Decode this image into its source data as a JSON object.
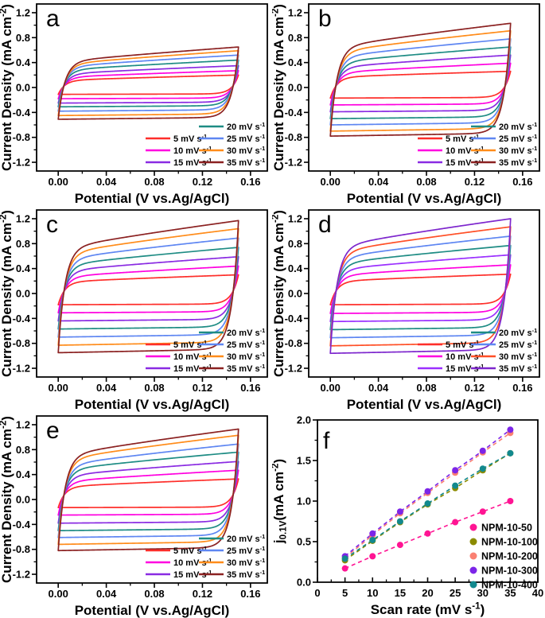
{
  "figure": {
    "background": "#ffffff",
    "axis_color": "#000000",
    "text_color": "#000000"
  },
  "chart_data": [
    {
      "id": "a",
      "type": "cv",
      "panel_label": "a",
      "xlabel": "Potential (V vs.Ag/AgCl)",
      "ylabel": "Current Density (mA cm^-2^)",
      "xlim": [
        -0.018,
        0.174
      ],
      "ylim": [
        -1.34,
        1.34
      ],
      "vmax": 0.15,
      "xticks": [
        0,
        0.04,
        0.08,
        0.12,
        0.16
      ],
      "xtick_labels": [
        "0.00",
        "0.04",
        "0.08",
        "0.12",
        "0.16"
      ],
      "yticks": [
        -1.2,
        -0.8,
        -0.4,
        0.0,
        0.4,
        0.8,
        1.2
      ],
      "ytick_labels": [
        "-1.2",
        "-0.8",
        "-0.4",
        "0.0",
        "0.4",
        "0.8",
        "1.2"
      ],
      "grid": false,
      "legend_position": "bottom-right",
      "series": [
        {
          "label": "5  mV s^-1^",
          "color": "#FE2E2A",
          "top_right": 0.2,
          "top_left": 0.11,
          "bottom": -0.11
        },
        {
          "label": "10 mV s^-1^",
          "color": "#FF00E0",
          "top_right": 0.27,
          "top_left": 0.16,
          "bottom": -0.18
        },
        {
          "label": "15 mV s^-1^",
          "color": "#8A2BE2",
          "top_right": 0.35,
          "top_left": 0.21,
          "bottom": -0.25
        },
        {
          "label": "20 mV s^-1^",
          "color": "#1E8C84",
          "top_right": 0.44,
          "top_left": 0.27,
          "bottom": -0.31
        },
        {
          "label": "25 mV s^-1^",
          "color": "#5E86F2",
          "top_right": 0.52,
          "top_left": 0.32,
          "bottom": -0.38
        },
        {
          "label": "30 mV s^-1^",
          "color": "#FF8C1A",
          "top_right": 0.59,
          "top_left": 0.36,
          "bottom": -0.45
        },
        {
          "label": "35 mV s^-1^",
          "color": "#8B2121",
          "top_right": 0.65,
          "top_left": 0.4,
          "bottom": -0.51
        }
      ]
    },
    {
      "id": "b",
      "type": "cv",
      "panel_label": "b",
      "xlabel": "Potential (V vs.Ag/AgCl)",
      "ylabel": "Current Density (mA cm^-2^)",
      "xlim": [
        -0.018,
        0.174
      ],
      "ylim": [
        -1.34,
        1.34
      ],
      "vmax": 0.15,
      "xticks": [
        0,
        0.04,
        0.08,
        0.12,
        0.16
      ],
      "xtick_labels": [
        "0.00",
        "0.04",
        "0.08",
        "0.12",
        "0.16"
      ],
      "yticks": [
        -1.2,
        -0.8,
        -0.4,
        0.0,
        0.4,
        0.8,
        1.2
      ],
      "ytick_labels": [
        "-1.2",
        "-0.8",
        "-0.4",
        "0.0",
        "0.4",
        "0.8",
        "1.2"
      ],
      "grid": false,
      "legend_position": "bottom-right",
      "series": [
        {
          "label": "5  mV s^-1^",
          "color": "#FE2E2A",
          "top_right": 0.26,
          "top_left": 0.16,
          "bottom": -0.17
        },
        {
          "label": "10 mV s^-1^",
          "color": "#FF00E0",
          "top_right": 0.39,
          "top_left": 0.23,
          "bottom": -0.28
        },
        {
          "label": "15 mV s^-1^",
          "color": "#8A2BE2",
          "top_right": 0.52,
          "top_left": 0.31,
          "bottom": -0.39
        },
        {
          "label": "20 mV s^-1^",
          "color": "#1E8C84",
          "top_right": 0.65,
          "top_left": 0.39,
          "bottom": -0.5
        },
        {
          "label": "25 mV s^-1^",
          "color": "#5E86F2",
          "top_right": 0.78,
          "top_left": 0.47,
          "bottom": -0.6
        },
        {
          "label": "30 mV s^-1^",
          "color": "#FF8C1A",
          "top_right": 0.91,
          "top_left": 0.55,
          "bottom": -0.7
        },
        {
          "label": "35 mV s^-1^",
          "color": "#8B2121",
          "top_right": 1.03,
          "top_left": 0.62,
          "bottom": -0.78
        }
      ]
    },
    {
      "id": "c",
      "type": "cv",
      "panel_label": "c",
      "xlabel": "Potential (V vs.Ag/AgCl)",
      "ylabel": "Current Density (mA cm^-2^)",
      "xlim": [
        -0.018,
        0.174
      ],
      "ylim": [
        -1.34,
        1.34
      ],
      "vmax": 0.15,
      "xticks": [
        0,
        0.04,
        0.08,
        0.12,
        0.16
      ],
      "xtick_labels": [
        "0.00",
        "0.04",
        "0.08",
        "0.12",
        "0.16"
      ],
      "yticks": [
        -1.2,
        -0.8,
        -0.4,
        0.0,
        0.4,
        0.8,
        1.2
      ],
      "ytick_labels": [
        "-1.2",
        "-0.8",
        "-0.4",
        "0.0",
        "0.4",
        "0.8",
        "1.2"
      ],
      "grid": false,
      "legend_position": "bottom-right",
      "series": [
        {
          "label": "5  mV s^-1^",
          "color": "#FE2E2A",
          "top_right": 0.3,
          "top_left": 0.18,
          "bottom": -0.18
        },
        {
          "label": "10 mV s^-1^",
          "color": "#FF00E0",
          "top_right": 0.44,
          "top_left": 0.26,
          "bottom": -0.31
        },
        {
          "label": "15 mV s^-1^",
          "color": "#8A2BE2",
          "top_right": 0.59,
          "top_left": 0.35,
          "bottom": -0.44
        },
        {
          "label": "20 mV s^-1^",
          "color": "#1E8C84",
          "top_right": 0.74,
          "top_left": 0.44,
          "bottom": -0.57
        },
        {
          "label": "25 mV s^-1^",
          "color": "#5E86F2",
          "top_right": 0.89,
          "top_left": 0.53,
          "bottom": -0.7
        },
        {
          "label": "30 mV s^-1^",
          "color": "#FF8C1A",
          "top_right": 1.04,
          "top_left": 0.62,
          "bottom": -0.83
        },
        {
          "label": "35 mV s^-1^",
          "color": "#8B2121",
          "top_right": 1.17,
          "top_left": 0.7,
          "bottom": -0.95
        }
      ]
    },
    {
      "id": "d",
      "type": "cv",
      "panel_label": "d",
      "xlabel": "Potential (V vs.Ag/AgCl)",
      "ylabel": "Current Density (mA cm^-2^)",
      "xlim": [
        -0.018,
        0.174
      ],
      "ylim": [
        -1.34,
        1.34
      ],
      "vmax": 0.15,
      "xticks": [
        0,
        0.04,
        0.08,
        0.12,
        0.16
      ],
      "xtick_labels": [
        "0.00",
        "0.04",
        "0.08",
        "0.12",
        "0.16"
      ],
      "yticks": [
        -1.2,
        -0.8,
        -0.4,
        0.0,
        0.4,
        0.8,
        1.2
      ],
      "ytick_labels": [
        "-1.2",
        "-0.8",
        "-0.4",
        "0.0",
        "0.4",
        "0.8",
        "1.2"
      ],
      "grid": false,
      "legend_position": "bottom-right",
      "series": [
        {
          "label": "5  mV s^-1^",
          "color": "#FE2E2A",
          "top_right": 0.31,
          "top_left": 0.19,
          "bottom": -0.18
        },
        {
          "label": "10 mV s^-1^",
          "color": "#FF00E0",
          "top_right": 0.46,
          "top_left": 0.28,
          "bottom": -0.32
        },
        {
          "label": "15 mV s^-1^",
          "color": "#9B30FF",
          "top_right": 0.62,
          "top_left": 0.37,
          "bottom": -0.45
        },
        {
          "label": "20 mV s^-1^",
          "color": "#1E8C84",
          "top_right": 0.77,
          "top_left": 0.46,
          "bottom": -0.58
        },
        {
          "label": "25 mV s^-1^",
          "color": "#5E86F2",
          "top_right": 0.92,
          "top_left": 0.55,
          "bottom": -0.71
        },
        {
          "label": "30 mV s^-1^",
          "color": "#FF4F26",
          "top_right": 1.07,
          "top_left": 0.64,
          "bottom": -0.84
        },
        {
          "label": "35 mV s^-1^",
          "color": "#7D26CD",
          "top_right": 1.2,
          "top_left": 0.72,
          "bottom": -0.96
        }
      ]
    },
    {
      "id": "e",
      "type": "cv",
      "panel_label": "e",
      "xlabel": "Potential (V vs.Ag/AgCl)",
      "ylabel": "Current Density (mA cm^-2^)",
      "xlim": [
        -0.018,
        0.174
      ],
      "ylim": [
        -1.34,
        1.34
      ],
      "vmax": 0.15,
      "xticks": [
        0,
        0.04,
        0.08,
        0.12,
        0.16
      ],
      "xtick_labels": [
        "0.00",
        "0.04",
        "0.08",
        "0.12",
        "0.16"
      ],
      "yticks": [
        -1.2,
        -0.8,
        -0.4,
        0.0,
        0.4,
        0.8,
        1.2
      ],
      "ytick_labels": [
        "-1.2",
        "-0.8",
        "-0.4",
        "0.0",
        "0.4",
        "0.8",
        "1.2"
      ],
      "grid": false,
      "legend_position": "bottom-right",
      "series": [
        {
          "label": "5  mV s^-1^",
          "color": "#FE2E2A",
          "top_right": 0.33,
          "top_left": 0.2,
          "bottom": -0.13
        },
        {
          "label": "10 mV s^-1^",
          "color": "#FF00E0",
          "top_right": 0.47,
          "top_left": 0.28,
          "bottom": -0.25
        },
        {
          "label": "15 mV s^-1^",
          "color": "#8A2BE2",
          "top_right": 0.61,
          "top_left": 0.37,
          "bottom": -0.38
        },
        {
          "label": "20 mV s^-1^",
          "color": "#1E8C84",
          "top_right": 0.76,
          "top_left": 0.46,
          "bottom": -0.5
        },
        {
          "label": "25 mV s^-1^",
          "color": "#5E86F2",
          "top_right": 0.89,
          "top_left": 0.53,
          "bottom": -0.61
        },
        {
          "label": "30 mV s^-1^",
          "color": "#FF8C1A",
          "top_right": 1.03,
          "top_left": 0.62,
          "bottom": -0.72
        },
        {
          "label": "35 mV s^-1^",
          "color": "#8B2121",
          "top_right": 1.13,
          "top_left": 0.68,
          "bottom": -0.82
        }
      ]
    },
    {
      "id": "f",
      "type": "scatter",
      "panel_label": "f",
      "xlabel": "Scan rate (mV s^-1^)",
      "ylabel": "j_0.1V_(mA cm^-2^)",
      "xlim": [
        0,
        40
      ],
      "ylim": [
        0,
        2.0
      ],
      "xticks": [
        0,
        5,
        10,
        15,
        20,
        25,
        30,
        35,
        40
      ],
      "xtick_labels": [
        "0",
        "5",
        "10",
        "15",
        "20",
        "25",
        "30",
        "35",
        "40"
      ],
      "yticks": [
        0,
        0.5,
        1.0,
        1.5,
        2.0
      ],
      "ytick_labels": [
        "0.0",
        "0.5",
        "1.0",
        "1.5",
        "2.0"
      ],
      "grid": false,
      "legend_position": "right-bottom",
      "x": [
        5,
        10,
        15,
        20,
        25,
        30,
        35
      ],
      "series": [
        {
          "label": "NPM-10-50",
          "color": "#FF1493",
          "values": [
            0.17,
            0.32,
            0.46,
            0.6,
            0.74,
            0.87,
            1.0
          ]
        },
        {
          "label": "NPM-10-100",
          "color": "#8B8B00",
          "values": [
            0.27,
            0.51,
            0.74,
            0.96,
            1.16,
            1.38,
            1.59
          ]
        },
        {
          "label": "NPM-10-200",
          "color": "#FA8072",
          "values": [
            0.3,
            0.58,
            0.85,
            1.1,
            1.35,
            1.6,
            1.84
          ]
        },
        {
          "label": "NPM-10-300",
          "color": "#7C25E8",
          "values": [
            0.32,
            0.6,
            0.87,
            1.12,
            1.38,
            1.62,
            1.88
          ]
        },
        {
          "label": "NPM-10-400",
          "color": "#12898E",
          "values": [
            0.29,
            0.52,
            0.75,
            0.97,
            1.19,
            1.4,
            1.59
          ]
        }
      ]
    }
  ]
}
